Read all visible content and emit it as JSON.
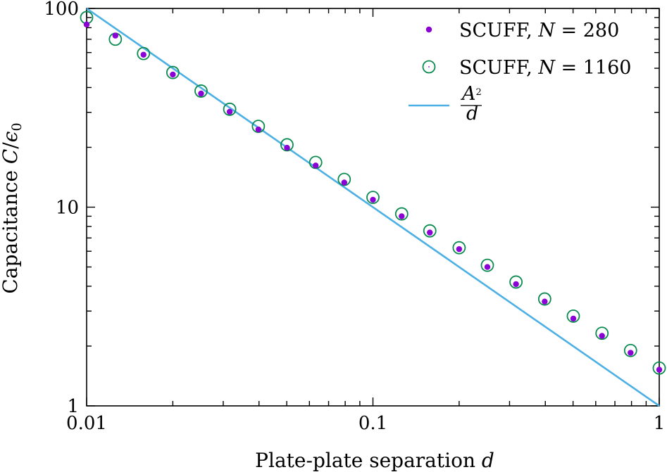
{
  "chart_data": {
    "type": "scatter",
    "title": "",
    "xlabel": "Plate-plate separation d",
    "ylabel": "Capacitance C/ϵ0",
    "xscale": "log",
    "yscale": "log",
    "xlim": [
      0.01,
      1
    ],
    "ylim": [
      1,
      100
    ],
    "xticks": [
      {
        "value": 0.01,
        "label": "0.01"
      },
      {
        "value": 0.1,
        "label": "0.1"
      },
      {
        "value": 1,
        "label": "1"
      }
    ],
    "yticks": [
      {
        "value": 1,
        "label": "1"
      },
      {
        "value": 10,
        "label": "10"
      },
      {
        "value": 100,
        "label": "100"
      }
    ],
    "grid": false,
    "legend_position": "top-right",
    "colors": {
      "n280": "#8b00d4",
      "n1160": "#0a8a50",
      "line": "#4cb0e4"
    },
    "series": [
      {
        "name": "SCUFF, N = 280",
        "marker": "filled-dot",
        "x": [
          0.01,
          0.0126,
          0.0158,
          0.02,
          0.0251,
          0.0316,
          0.0398,
          0.0501,
          0.0631,
          0.0794,
          0.1,
          0.126,
          0.158,
          0.2,
          0.251,
          0.316,
          0.398,
          0.501,
          0.631,
          0.794,
          1.0
        ],
        "y": [
          83,
          73,
          58.5,
          46.5,
          37.3,
          30.2,
          24.6,
          19.9,
          16.2,
          13.3,
          10.9,
          9.0,
          7.45,
          6.15,
          5.0,
          4.1,
          3.35,
          2.75,
          2.25,
          1.85,
          1.52
        ]
      },
      {
        "name": "SCUFF, N = 1160",
        "marker": "open-circle",
        "x": [
          0.01,
          0.0126,
          0.0158,
          0.02,
          0.0251,
          0.0316,
          0.0398,
          0.0501,
          0.0631,
          0.0794,
          0.1,
          0.126,
          0.158,
          0.2,
          0.251,
          0.316,
          0.398,
          0.501,
          0.631,
          0.794,
          1.0
        ],
        "y": [
          90,
          70,
          59.3,
          47.6,
          38.4,
          31.1,
          25.5,
          20.6,
          16.8,
          13.8,
          11.2,
          9.25,
          7.6,
          6.25,
          5.1,
          4.2,
          3.45,
          2.83,
          2.32,
          1.9,
          1.55
        ]
      },
      {
        "name": "A^2/d",
        "marker": "line",
        "x": [
          0.01,
          1
        ],
        "y": [
          100,
          1
        ]
      }
    ],
    "legend": [
      {
        "key": "n280",
        "text_prefix": "SCUFF, ",
        "var": "N",
        "rel": " = ",
        "num": "280"
      },
      {
        "key": "n1160",
        "text_prefix": "SCUFF, ",
        "var": "N",
        "rel": " = ",
        "num": "1160"
      },
      {
        "key": "line",
        "numerator": "A",
        "sup": "2",
        "denominator": "d"
      }
    ]
  }
}
